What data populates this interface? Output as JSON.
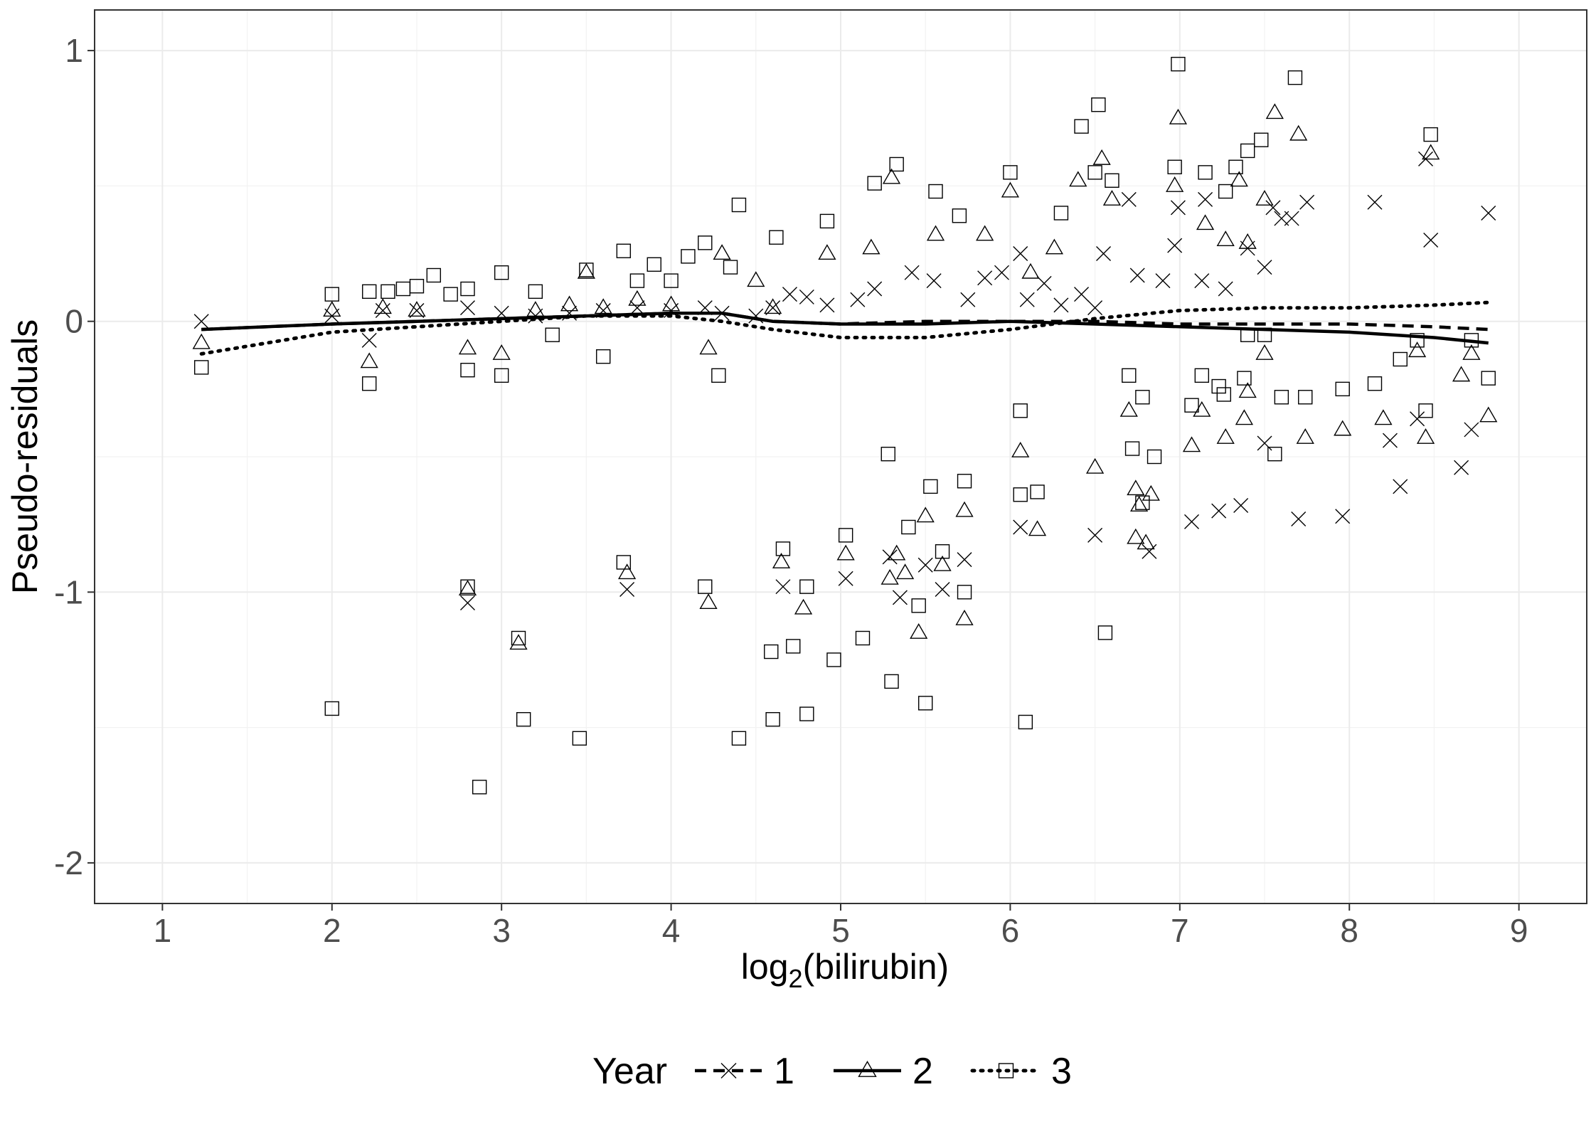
{
  "chart_data": {
    "type": "scatter",
    "xlabel_base": "log",
    "xlabel_sub": "2",
    "xlabel_rest": "(bilirubin)",
    "ylabel": "Pseudo-residuals",
    "xlim": [
      0.6,
      9.4
    ],
    "ylim": [
      -2.15,
      1.15
    ],
    "x_ticks": [
      1,
      2,
      3,
      4,
      5,
      6,
      7,
      8,
      9
    ],
    "x_tick_labels": [
      "1",
      "2",
      "3",
      "4",
      "5",
      "6",
      "7",
      "8",
      "9"
    ],
    "y_ticks": [
      -2,
      -1,
      0,
      1
    ],
    "y_tick_labels": [
      "-2",
      "-1",
      "0",
      "1"
    ],
    "grid": true,
    "legend": {
      "title": "Year",
      "position": "bottom",
      "entries": [
        "1",
        "2",
        "3"
      ]
    },
    "series": [
      {
        "name": "1",
        "marker": "x",
        "line_style": "dashed",
        "smooth": [
          [
            1.23,
            -0.03
          ],
          [
            2.0,
            -0.01
          ],
          [
            2.5,
            0.0
          ],
          [
            3.0,
            0.01
          ],
          [
            3.5,
            0.02
          ],
          [
            4.0,
            0.03
          ],
          [
            4.3,
            0.03
          ],
          [
            4.6,
            0.0
          ],
          [
            5.0,
            -0.01
          ],
          [
            5.5,
            0.0
          ],
          [
            6.0,
            0.0
          ],
          [
            6.5,
            0.0
          ],
          [
            7.0,
            -0.01
          ],
          [
            7.5,
            -0.01
          ],
          [
            8.0,
            -0.01
          ],
          [
            8.5,
            -0.02
          ],
          [
            8.82,
            -0.03
          ]
        ],
        "points": [
          [
            1.23,
            0.0
          ],
          [
            2.0,
            0.02
          ],
          [
            2.22,
            -0.07
          ],
          [
            2.3,
            0.04
          ],
          [
            2.5,
            0.04
          ],
          [
            2.8,
            -1.04
          ],
          [
            2.8,
            0.05
          ],
          [
            3.0,
            0.03
          ],
          [
            3.2,
            0.02
          ],
          [
            3.4,
            0.03
          ],
          [
            3.6,
            0.04
          ],
          [
            3.74,
            -0.99
          ],
          [
            3.8,
            0.05
          ],
          [
            4.0,
            0.04
          ],
          [
            4.2,
            0.05
          ],
          [
            4.3,
            0.03
          ],
          [
            4.5,
            0.02
          ],
          [
            4.6,
            0.05
          ],
          [
            4.66,
            -0.98
          ],
          [
            4.7,
            0.1
          ],
          [
            4.8,
            0.09
          ],
          [
            4.92,
            0.06
          ],
          [
            5.03,
            -0.95
          ],
          [
            5.1,
            0.08
          ],
          [
            5.2,
            0.12
          ],
          [
            5.29,
            -0.87
          ],
          [
            5.35,
            -1.02
          ],
          [
            5.42,
            0.18
          ],
          [
            5.5,
            -0.9
          ],
          [
            5.55,
            0.15
          ],
          [
            5.6,
            -0.99
          ],
          [
            5.73,
            -0.88
          ],
          [
            5.75,
            0.08
          ],
          [
            5.85,
            0.16
          ],
          [
            5.95,
            0.18
          ],
          [
            6.06,
            0.25
          ],
          [
            6.06,
            -0.76
          ],
          [
            6.1,
            0.08
          ],
          [
            6.2,
            0.14
          ],
          [
            6.3,
            0.06
          ],
          [
            6.42,
            0.1
          ],
          [
            6.5,
            -0.79
          ],
          [
            6.5,
            0.05
          ],
          [
            6.55,
            0.25
          ],
          [
            6.7,
            0.45
          ],
          [
            6.75,
            0.17
          ],
          [
            6.82,
            -0.85
          ],
          [
            6.9,
            0.15
          ],
          [
            6.97,
            0.28
          ],
          [
            6.99,
            0.42
          ],
          [
            7.07,
            -0.74
          ],
          [
            7.13,
            0.15
          ],
          [
            7.15,
            0.45
          ],
          [
            7.23,
            -0.7
          ],
          [
            7.27,
            0.12
          ],
          [
            7.36,
            -0.68
          ],
          [
            7.4,
            0.27
          ],
          [
            7.5,
            0.2
          ],
          [
            7.5,
            -0.45
          ],
          [
            7.55,
            0.42
          ],
          [
            7.6,
            0.38
          ],
          [
            7.66,
            0.38
          ],
          [
            7.7,
            -0.73
          ],
          [
            7.75,
            0.44
          ],
          [
            7.96,
            -0.72
          ],
          [
            8.15,
            0.44
          ],
          [
            8.24,
            -0.44
          ],
          [
            8.3,
            -0.61
          ],
          [
            8.4,
            -0.36
          ],
          [
            8.45,
            0.6
          ],
          [
            8.48,
            0.3
          ],
          [
            8.66,
            -0.54
          ],
          [
            8.72,
            -0.4
          ],
          [
            8.82,
            0.4
          ]
        ]
      },
      {
        "name": "2",
        "marker": "triangle",
        "line_style": "solid",
        "smooth": [
          [
            1.23,
            -0.03
          ],
          [
            2.0,
            -0.01
          ],
          [
            2.5,
            0.0
          ],
          [
            3.0,
            0.01
          ],
          [
            3.5,
            0.02
          ],
          [
            4.0,
            0.03
          ],
          [
            4.3,
            0.03
          ],
          [
            4.6,
            0.0
          ],
          [
            5.0,
            -0.01
          ],
          [
            5.5,
            -0.01
          ],
          [
            6.0,
            0.0
          ],
          [
            6.5,
            -0.01
          ],
          [
            7.0,
            -0.02
          ],
          [
            7.5,
            -0.03
          ],
          [
            8.0,
            -0.04
          ],
          [
            8.5,
            -0.06
          ],
          [
            8.82,
            -0.08
          ]
        ],
        "points": [
          [
            1.23,
            -0.08
          ],
          [
            2.0,
            0.04
          ],
          [
            2.22,
            -0.15
          ],
          [
            2.3,
            0.05
          ],
          [
            2.5,
            0.04
          ],
          [
            2.8,
            -0.1
          ],
          [
            2.8,
            -0.99
          ],
          [
            3.0,
            -0.12
          ],
          [
            3.1,
            -1.19
          ],
          [
            3.2,
            0.04
          ],
          [
            3.4,
            0.06
          ],
          [
            3.5,
            0.18
          ],
          [
            3.6,
            0.05
          ],
          [
            3.74,
            -0.93
          ],
          [
            3.8,
            0.08
          ],
          [
            4.0,
            0.06
          ],
          [
            4.22,
            -1.04
          ],
          [
            4.22,
            -0.1
          ],
          [
            4.3,
            0.25
          ],
          [
            4.5,
            0.15
          ],
          [
            4.6,
            0.05
          ],
          [
            4.65,
            -0.89
          ],
          [
            4.78,
            -1.06
          ],
          [
            4.92,
            0.25
          ],
          [
            5.03,
            -0.86
          ],
          [
            5.18,
            0.27
          ],
          [
            5.29,
            -0.95
          ],
          [
            5.3,
            0.53
          ],
          [
            5.33,
            -0.86
          ],
          [
            5.38,
            -0.93
          ],
          [
            5.46,
            -1.15
          ],
          [
            5.5,
            -0.72
          ],
          [
            5.56,
            0.32
          ],
          [
            5.6,
            -0.9
          ],
          [
            5.73,
            -0.7
          ],
          [
            5.73,
            -1.1
          ],
          [
            5.85,
            0.32
          ],
          [
            6.0,
            0.48
          ],
          [
            6.06,
            -0.48
          ],
          [
            6.12,
            0.18
          ],
          [
            6.16,
            -0.77
          ],
          [
            6.26,
            0.27
          ],
          [
            6.4,
            0.52
          ],
          [
            6.5,
            -0.54
          ],
          [
            6.54,
            0.6
          ],
          [
            6.6,
            0.45
          ],
          [
            6.7,
            -0.33
          ],
          [
            6.74,
            -0.8
          ],
          [
            6.74,
            -0.62
          ],
          [
            6.76,
            -0.68
          ],
          [
            6.8,
            -0.82
          ],
          [
            6.83,
            -0.64
          ],
          [
            6.97,
            0.5
          ],
          [
            6.99,
            0.75
          ],
          [
            7.07,
            -0.46
          ],
          [
            7.13,
            -0.33
          ],
          [
            7.15,
            0.36
          ],
          [
            7.27,
            0.3
          ],
          [
            7.27,
            -0.43
          ],
          [
            7.35,
            0.52
          ],
          [
            7.38,
            -0.36
          ],
          [
            7.4,
            -0.26
          ],
          [
            7.4,
            0.29
          ],
          [
            7.5,
            -0.12
          ],
          [
            7.5,
            0.45
          ],
          [
            7.56,
            0.77
          ],
          [
            7.7,
            0.69
          ],
          [
            7.74,
            -0.43
          ],
          [
            7.96,
            -0.4
          ],
          [
            8.2,
            -0.36
          ],
          [
            8.4,
            -0.11
          ],
          [
            8.45,
            -0.43
          ],
          [
            8.48,
            0.62
          ],
          [
            8.66,
            -0.2
          ],
          [
            8.72,
            -0.12
          ],
          [
            8.82,
            -0.35
          ]
        ]
      },
      {
        "name": "3",
        "marker": "square",
        "line_style": "dotted",
        "smooth": [
          [
            1.23,
            -0.12
          ],
          [
            2.0,
            -0.04
          ],
          [
            2.5,
            -0.02
          ],
          [
            3.0,
            0.0
          ],
          [
            3.5,
            0.02
          ],
          [
            4.0,
            0.02
          ],
          [
            4.3,
            0.0
          ],
          [
            4.6,
            -0.03
          ],
          [
            5.0,
            -0.06
          ],
          [
            5.5,
            -0.06
          ],
          [
            6.0,
            -0.03
          ],
          [
            6.5,
            0.01
          ],
          [
            7.0,
            0.04
          ],
          [
            7.5,
            0.05
          ],
          [
            8.0,
            0.05
          ],
          [
            8.5,
            0.06
          ],
          [
            8.82,
            0.07
          ]
        ],
        "points": [
          [
            1.23,
            -0.17
          ],
          [
            2.0,
            -1.43
          ],
          [
            2.0,
            0.1
          ],
          [
            2.22,
            -0.23
          ],
          [
            2.22,
            0.11
          ],
          [
            2.33,
            0.11
          ],
          [
            2.42,
            0.12
          ],
          [
            2.5,
            0.13
          ],
          [
            2.6,
            0.17
          ],
          [
            2.7,
            0.1
          ],
          [
            2.8,
            -0.98
          ],
          [
            2.8,
            -0.18
          ],
          [
            2.8,
            0.12
          ],
          [
            2.87,
            -1.72
          ],
          [
            3.0,
            -0.2
          ],
          [
            3.0,
            0.18
          ],
          [
            3.1,
            -1.17
          ],
          [
            3.13,
            -1.47
          ],
          [
            3.2,
            0.11
          ],
          [
            3.3,
            -0.05
          ],
          [
            3.46,
            -1.54
          ],
          [
            3.5,
            0.19
          ],
          [
            3.6,
            -0.13
          ],
          [
            3.72,
            -0.89
          ],
          [
            3.72,
            0.26
          ],
          [
            3.8,
            0.15
          ],
          [
            3.9,
            0.21
          ],
          [
            4.0,
            0.15
          ],
          [
            4.1,
            0.24
          ],
          [
            4.2,
            0.29
          ],
          [
            4.2,
            -0.98
          ],
          [
            4.28,
            -0.2
          ],
          [
            4.35,
            0.2
          ],
          [
            4.4,
            0.43
          ],
          [
            4.4,
            -1.54
          ],
          [
            4.59,
            -1.22
          ],
          [
            4.6,
            -1.47
          ],
          [
            4.62,
            0.31
          ],
          [
            4.66,
            -0.84
          ],
          [
            4.72,
            -1.2
          ],
          [
            4.8,
            -0.98
          ],
          [
            4.8,
            -1.45
          ],
          [
            4.92,
            0.37
          ],
          [
            4.96,
            -1.25
          ],
          [
            5.03,
            -0.79
          ],
          [
            5.13,
            -1.17
          ],
          [
            5.2,
            0.51
          ],
          [
            5.28,
            -0.49
          ],
          [
            5.3,
            -1.33
          ],
          [
            5.33,
            0.58
          ],
          [
            5.4,
            -0.76
          ],
          [
            5.46,
            -1.05
          ],
          [
            5.5,
            -1.41
          ],
          [
            5.53,
            -0.61
          ],
          [
            5.56,
            0.48
          ],
          [
            5.6,
            -0.85
          ],
          [
            5.7,
            0.39
          ],
          [
            5.73,
            -0.59
          ],
          [
            5.73,
            -1.0
          ],
          [
            6.0,
            0.55
          ],
          [
            6.06,
            -0.33
          ],
          [
            6.06,
            -0.64
          ],
          [
            6.09,
            -1.48
          ],
          [
            6.16,
            -0.63
          ],
          [
            6.3,
            0.4
          ],
          [
            6.42,
            0.72
          ],
          [
            6.5,
            0.55
          ],
          [
            6.52,
            0.8
          ],
          [
            6.56,
            -1.15
          ],
          [
            6.6,
            0.52
          ],
          [
            6.7,
            -0.2
          ],
          [
            6.72,
            -0.47
          ],
          [
            6.78,
            -0.67
          ],
          [
            6.78,
            -0.28
          ],
          [
            6.85,
            -0.5
          ],
          [
            6.97,
            0.57
          ],
          [
            6.99,
            0.95
          ],
          [
            7.07,
            -0.31
          ],
          [
            7.13,
            -0.2
          ],
          [
            7.15,
            0.55
          ],
          [
            7.23,
            -0.24
          ],
          [
            7.26,
            -0.27
          ],
          [
            7.27,
            0.48
          ],
          [
            7.33,
            0.57
          ],
          [
            7.38,
            -0.21
          ],
          [
            7.4,
            0.63
          ],
          [
            7.4,
            -0.05
          ],
          [
            7.48,
            0.67
          ],
          [
            7.5,
            -0.05
          ],
          [
            7.56,
            -0.49
          ],
          [
            7.6,
            -0.28
          ],
          [
            7.68,
            0.9
          ],
          [
            7.74,
            -0.28
          ],
          [
            7.96,
            -0.25
          ],
          [
            8.15,
            -0.23
          ],
          [
            8.3,
            -0.14
          ],
          [
            8.4,
            -0.07
          ],
          [
            8.45,
            -0.33
          ],
          [
            8.48,
            0.69
          ],
          [
            8.72,
            -0.07
          ],
          [
            8.82,
            -0.21
          ]
        ]
      }
    ]
  }
}
